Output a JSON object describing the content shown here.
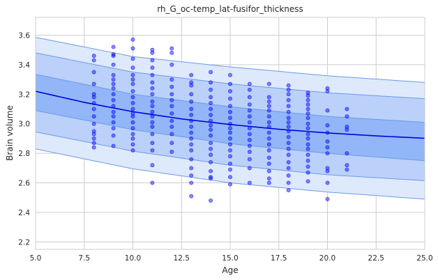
{
  "chart_data": {
    "type": "scatter",
    "title": "rh_G_oc-temp_lat-fusifor_thickness",
    "xlabel": "Age",
    "ylabel": "Brain volume",
    "xlim": [
      5.0,
      25.0
    ],
    "ylim": [
      2.15,
      3.72
    ],
    "xticks": [
      "5.0",
      "7.5",
      "10.0",
      "12.5",
      "15.0",
      "17.5",
      "20.0",
      "22.5",
      "25.0"
    ],
    "yticks": [
      "2.2",
      "2.4",
      "2.6",
      "2.8",
      "3.0",
      "3.2",
      "3.4",
      "3.6"
    ],
    "grid": true,
    "colors": {
      "points": "#0000ff",
      "median_line": "#0000dd",
      "band_outer": "#dce8fc",
      "band_middle": "#b8d0fa",
      "band_inner": "#8fb4f7",
      "band_edge": "#6a9ae8"
    },
    "median_curve": {
      "x": [
        5,
        7.5,
        10,
        12.5,
        15,
        17.5,
        20,
        22.5,
        25
      ],
      "y": [
        3.22,
        3.145,
        3.082,
        3.033,
        2.995,
        2.963,
        2.938,
        2.918,
        2.902
      ]
    },
    "bands": [
      {
        "name": "outer",
        "x": [
          5,
          10,
          15,
          20,
          25
        ],
        "lower": [
          2.83,
          2.695,
          2.6,
          2.538,
          2.49
        ],
        "upper": [
          3.585,
          3.455,
          3.385,
          3.325,
          3.28
        ]
      },
      {
        "name": "middle",
        "x": [
          5,
          10,
          15,
          20,
          25
        ],
        "lower": [
          2.945,
          2.815,
          2.72,
          2.655,
          2.615
        ],
        "upper": [
          3.48,
          3.35,
          3.27,
          3.21,
          3.17
        ]
      },
      {
        "name": "inner",
        "x": [
          5,
          10,
          15,
          20,
          25
        ],
        "lower": [
          3.09,
          2.96,
          2.865,
          2.8,
          2.75
        ],
        "upper": [
          3.335,
          3.2,
          3.115,
          3.05,
          3.01
        ]
      }
    ],
    "points": [
      [
        8,
        3.46
      ],
      [
        8,
        3.43
      ],
      [
        8,
        3.35
      ],
      [
        8,
        3.27
      ],
      [
        8,
        3.2
      ],
      [
        8,
        3.18
      ],
      [
        8,
        3.14
      ],
      [
        8,
        3.1
      ],
      [
        8,
        3.05
      ],
      [
        8,
        3.0
      ],
      [
        8,
        2.95
      ],
      [
        8,
        2.93
      ],
      [
        8,
        2.9
      ],
      [
        8,
        2.87
      ],
      [
        8,
        2.84
      ],
      [
        9,
        3.52
      ],
      [
        9,
        3.47
      ],
      [
        9,
        3.46
      ],
      [
        9,
        3.4
      ],
      [
        9,
        3.33
      ],
      [
        9,
        3.3
      ],
      [
        9,
        3.27
      ],
      [
        9,
        3.24
      ],
      [
        9,
        3.2
      ],
      [
        9,
        3.16
      ],
      [
        9,
        3.12
      ],
      [
        9,
        3.08
      ],
      [
        9,
        3.05
      ],
      [
        9,
        3.01
      ],
      [
        9,
        2.97
      ],
      [
        9,
        2.92
      ],
      [
        9,
        2.85
      ],
      [
        10,
        3.57
      ],
      [
        10,
        3.51
      ],
      [
        10,
        3.44
      ],
      [
        10,
        3.38
      ],
      [
        10,
        3.33
      ],
      [
        10,
        3.3
      ],
      [
        10,
        3.27
      ],
      [
        10,
        3.22
      ],
      [
        10,
        3.18
      ],
      [
        10,
        3.14
      ],
      [
        10,
        3.1
      ],
      [
        10,
        3.07
      ],
      [
        10,
        3.05
      ],
      [
        10,
        3.01
      ],
      [
        10,
        2.97
      ],
      [
        10,
        2.93
      ],
      [
        10,
        2.9
      ],
      [
        10,
        2.86
      ],
      [
        10,
        2.82
      ],
      [
        11,
        3.5
      ],
      [
        11,
        3.48
      ],
      [
        11,
        3.43
      ],
      [
        11,
        3.38
      ],
      [
        11,
        3.33
      ],
      [
        11,
        3.28
      ],
      [
        11,
        3.24
      ],
      [
        11,
        3.2
      ],
      [
        11,
        3.15
      ],
      [
        11,
        3.12
      ],
      [
        11,
        3.08
      ],
      [
        11,
        3.05
      ],
      [
        11,
        3.01
      ],
      [
        11,
        2.98
      ],
      [
        11,
        2.93
      ],
      [
        11,
        2.87
      ],
      [
        11,
        2.82
      ],
      [
        11,
        2.72
      ],
      [
        11,
        2.6
      ],
      [
        12,
        3.51
      ],
      [
        12,
        3.48
      ],
      [
        12,
        3.4
      ],
      [
        12,
        3.3
      ],
      [
        12,
        3.25
      ],
      [
        12,
        3.2
      ],
      [
        12,
        3.16
      ],
      [
        12,
        3.12
      ],
      [
        12,
        3.07
      ],
      [
        12,
        3.02
      ],
      [
        12,
        2.98
      ],
      [
        12,
        2.93
      ],
      [
        12,
        2.87
      ],
      [
        12,
        2.81
      ],
      [
        13,
        3.33
      ],
      [
        13,
        3.28
      ],
      [
        13,
        3.26
      ],
      [
        13,
        3.2
      ],
      [
        13,
        3.15
      ],
      [
        13,
        3.1
      ],
      [
        13,
        3.06
      ],
      [
        13,
        3.02
      ],
      [
        13,
        2.98
      ],
      [
        13,
        2.94
      ],
      [
        13,
        2.9
      ],
      [
        13,
        2.86
      ],
      [
        13,
        2.82
      ],
      [
        13,
        2.76
      ],
      [
        13,
        2.7
      ],
      [
        13,
        2.65
      ],
      [
        13,
        2.6
      ],
      [
        13,
        2.51
      ],
      [
        14,
        3.35
      ],
      [
        14,
        3.28
      ],
      [
        14,
        3.23
      ],
      [
        14,
        3.18
      ],
      [
        14,
        3.14
      ],
      [
        14,
        3.1
      ],
      [
        14,
        3.06
      ],
      [
        14,
        3.02
      ],
      [
        14,
        2.99
      ],
      [
        14,
        2.96
      ],
      [
        14,
        2.92
      ],
      [
        14,
        2.87
      ],
      [
        14,
        2.83
      ],
      [
        14,
        2.79
      ],
      [
        14,
        2.74
      ],
      [
        14,
        2.68
      ],
      [
        14,
        2.64
      ],
      [
        14,
        2.63
      ],
      [
        14,
        2.48
      ],
      [
        15,
        3.33
      ],
      [
        15,
        3.27
      ],
      [
        15,
        3.22
      ],
      [
        15,
        3.17
      ],
      [
        15,
        3.12
      ],
      [
        15,
        3.08
      ],
      [
        15,
        3.04
      ],
      [
        15,
        3.0
      ],
      [
        15,
        2.97
      ],
      [
        15,
        2.94
      ],
      [
        15,
        2.9
      ],
      [
        15,
        2.86
      ],
      [
        15,
        2.82
      ],
      [
        15,
        2.78
      ],
      [
        15,
        2.73
      ],
      [
        15,
        2.69
      ],
      [
        15,
        2.64
      ],
      [
        15,
        2.59
      ],
      [
        16,
        3.27
      ],
      [
        16,
        3.23
      ],
      [
        16,
        3.18
      ],
      [
        16,
        3.13
      ],
      [
        16,
        3.09
      ],
      [
        16,
        3.05
      ],
      [
        16,
        3.01
      ],
      [
        16,
        2.97
      ],
      [
        16,
        2.93
      ],
      [
        16,
        2.89
      ],
      [
        16,
        2.85
      ],
      [
        16,
        2.81
      ],
      [
        16,
        2.76
      ],
      [
        16,
        2.7
      ],
      [
        16,
        2.6
      ],
      [
        17,
        3.27
      ],
      [
        17,
        3.18
      ],
      [
        17,
        3.15
      ],
      [
        17,
        3.12
      ],
      [
        17,
        3.09
      ],
      [
        17,
        3.05
      ],
      [
        17,
        3.01
      ],
      [
        17,
        2.98
      ],
      [
        17,
        2.94
      ],
      [
        17,
        2.9
      ],
      [
        17,
        2.86
      ],
      [
        17,
        2.82
      ],
      [
        17,
        2.77
      ],
      [
        17,
        2.73
      ],
      [
        17,
        2.68
      ],
      [
        17,
        2.63
      ],
      [
        17,
        2.6
      ],
      [
        18,
        3.26
      ],
      [
        18,
        3.23
      ],
      [
        18,
        3.2
      ],
      [
        18,
        3.16
      ],
      [
        18,
        3.12
      ],
      [
        18,
        3.08
      ],
      [
        18,
        3.04
      ],
      [
        18,
        3.01
      ],
      [
        18,
        2.98
      ],
      [
        18,
        2.95
      ],
      [
        18,
        2.91
      ],
      [
        18,
        2.87
      ],
      [
        18,
        2.83
      ],
      [
        18,
        2.79
      ],
      [
        18,
        2.74
      ],
      [
        18,
        2.7
      ],
      [
        18,
        2.65
      ],
      [
        18,
        2.6
      ],
      [
        18,
        2.55
      ],
      [
        19,
        3.21
      ],
      [
        19,
        3.19
      ],
      [
        19,
        3.16
      ],
      [
        19,
        3.13
      ],
      [
        19,
        3.1
      ],
      [
        19,
        3.07
      ],
      [
        19,
        3.04
      ],
      [
        19,
        3.0
      ],
      [
        19,
        2.97
      ],
      [
        19,
        2.93
      ],
      [
        19,
        2.9
      ],
      [
        19,
        2.86
      ],
      [
        19,
        2.83
      ],
      [
        19,
        2.79
      ],
      [
        19,
        2.75
      ],
      [
        19,
        2.71
      ],
      [
        19,
        2.67
      ],
      [
        19,
        2.61
      ],
      [
        20,
        3.24
      ],
      [
        20,
        3.22
      ],
      [
        20,
        3.09
      ],
      [
        20,
        2.99
      ],
      [
        20,
        2.94
      ],
      [
        20,
        2.88
      ],
      [
        20,
        2.84
      ],
      [
        20,
        2.8
      ],
      [
        20,
        2.7
      ],
      [
        20,
        2.68
      ],
      [
        20,
        2.6
      ],
      [
        20,
        2.49
      ],
      [
        21,
        3.1
      ],
      [
        21,
        3.05
      ],
      [
        21,
        2.98
      ],
      [
        21,
        2.96
      ],
      [
        21,
        2.8
      ],
      [
        21,
        2.72
      ],
      [
        21,
        2.69
      ]
    ]
  }
}
